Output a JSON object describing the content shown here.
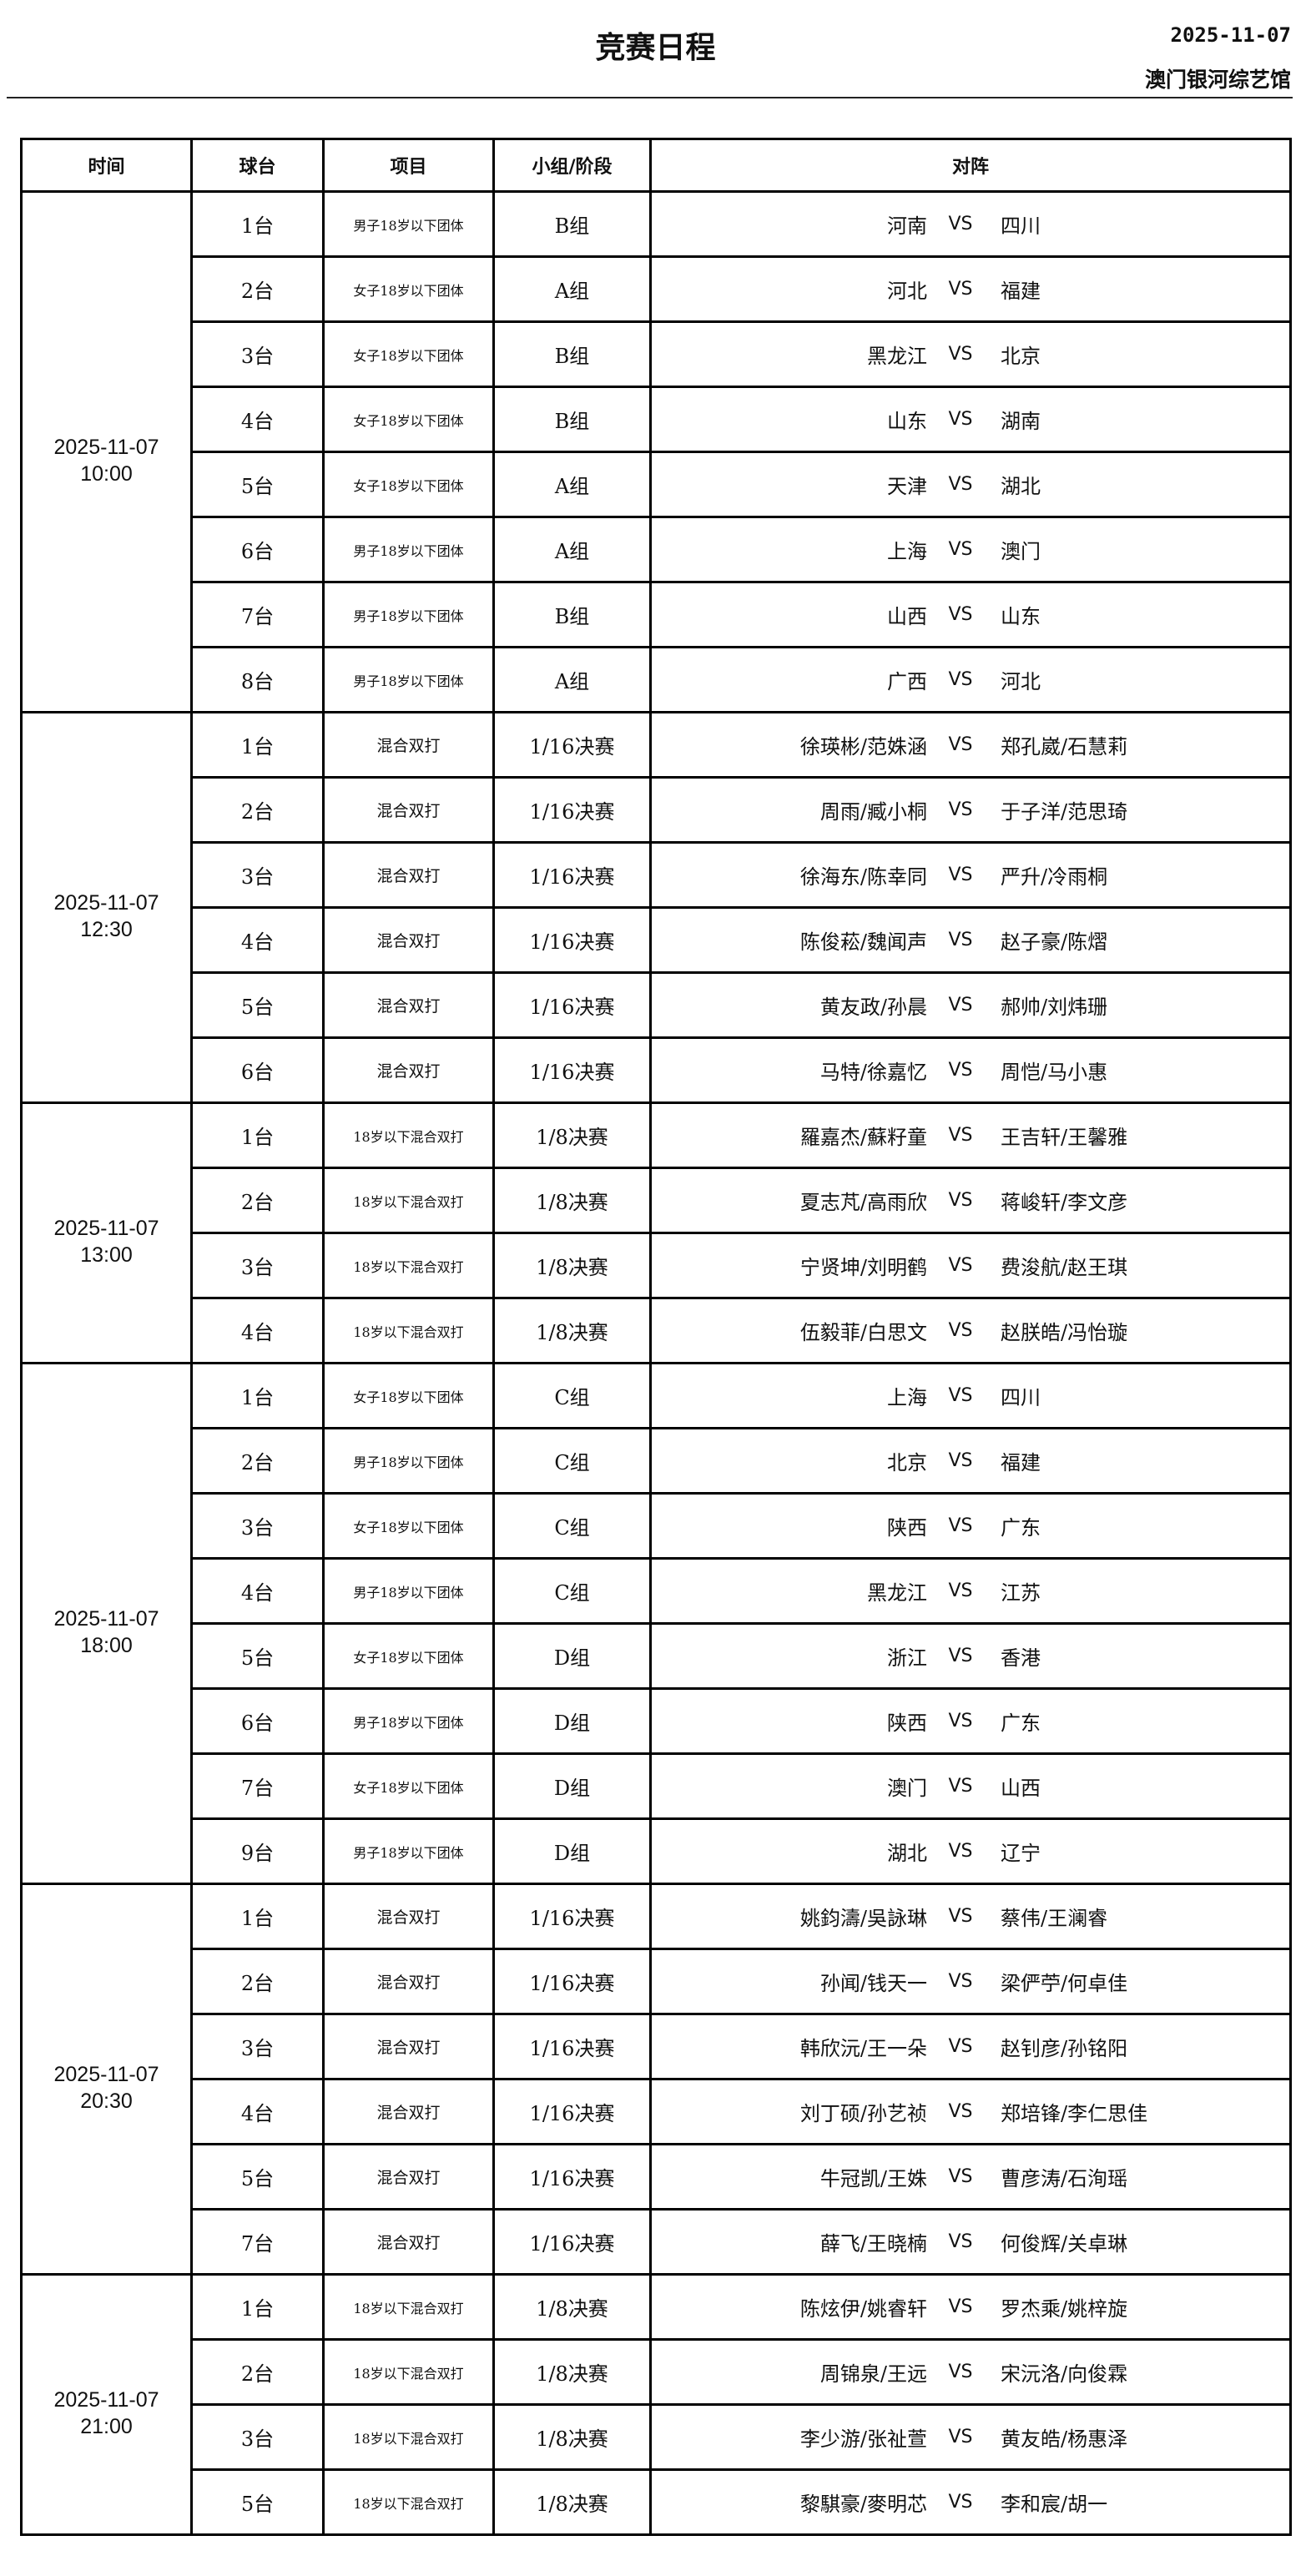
{
  "header": {
    "title": "竞赛日程",
    "date": "2025-11-07",
    "venue": "澳门银河综艺馆"
  },
  "columns": [
    "时间",
    "球台",
    "项目",
    "小组/阶段",
    "对阵"
  ],
  "vs_label": "VS",
  "sessions": [
    {
      "date": "2025-11-07",
      "time": "10:00",
      "matches": [
        {
          "table": "1台",
          "event": "男子18岁以下团体",
          "stage": "B组",
          "left": "河南",
          "right": "四川"
        },
        {
          "table": "2台",
          "event": "女子18岁以下团体",
          "stage": "A组",
          "left": "河北",
          "right": "福建"
        },
        {
          "table": "3台",
          "event": "女子18岁以下团体",
          "stage": "B组",
          "left": "黑龙江",
          "right": "北京"
        },
        {
          "table": "4台",
          "event": "女子18岁以下团体",
          "stage": "B组",
          "left": "山东",
          "right": "湖南"
        },
        {
          "table": "5台",
          "event": "女子18岁以下团体",
          "stage": "A组",
          "left": "天津",
          "right": "湖北"
        },
        {
          "table": "6台",
          "event": "男子18岁以下团体",
          "stage": "A组",
          "left": "上海",
          "right": "澳门"
        },
        {
          "table": "7台",
          "event": "男子18岁以下团体",
          "stage": "B组",
          "left": "山西",
          "right": "山东"
        },
        {
          "table": "8台",
          "event": "男子18岁以下团体",
          "stage": "A组",
          "left": "广西",
          "right": "河北"
        }
      ]
    },
    {
      "date": "2025-11-07",
      "time": "12:30",
      "matches": [
        {
          "table": "1台",
          "event": "混合双打",
          "stage": "1/16决赛",
          "left": "徐瑛彬/范姝涵",
          "right": "郑孔崴/石慧莉"
        },
        {
          "table": "2台",
          "event": "混合双打",
          "stage": "1/16决赛",
          "left": "周雨/臧小桐",
          "right": "于子洋/范思琦"
        },
        {
          "table": "3台",
          "event": "混合双打",
          "stage": "1/16决赛",
          "left": "徐海东/陈幸同",
          "right": "严升/冷雨桐"
        },
        {
          "table": "4台",
          "event": "混合双打",
          "stage": "1/16决赛",
          "left": "陈俊菘/魏闻声",
          "right": "赵子豪/陈熠"
        },
        {
          "table": "5台",
          "event": "混合双打",
          "stage": "1/16决赛",
          "left": "黄友政/孙晨",
          "right": "郝帅/刘炜珊"
        },
        {
          "table": "6台",
          "event": "混合双打",
          "stage": "1/16决赛",
          "left": "马特/徐嘉忆",
          "right": "周恺/马小惠"
        }
      ]
    },
    {
      "date": "2025-11-07",
      "time": "13:00",
      "matches": [
        {
          "table": "1台",
          "event": "18岁以下混合双打",
          "stage": "1/8决赛",
          "left": "羅嘉杰/蘇籽童",
          "right": "王吉轩/王馨雅"
        },
        {
          "table": "2台",
          "event": "18岁以下混合双打",
          "stage": "1/8决赛",
          "left": "夏志芃/高雨欣",
          "right": "蒋峻轩/李文彦"
        },
        {
          "table": "3台",
          "event": "18岁以下混合双打",
          "stage": "1/8决赛",
          "left": "宁贤坤/刘明鹤",
          "right": "费浚航/赵王琪"
        },
        {
          "table": "4台",
          "event": "18岁以下混合双打",
          "stage": "1/8决赛",
          "left": "伍毅菲/白思文",
          "right": "赵朕皓/冯怡璇"
        }
      ]
    },
    {
      "date": "2025-11-07",
      "time": "18:00",
      "matches": [
        {
          "table": "1台",
          "event": "女子18岁以下团体",
          "stage": "C组",
          "left": "上海",
          "right": "四川"
        },
        {
          "table": "2台",
          "event": "男子18岁以下团体",
          "stage": "C组",
          "left": "北京",
          "right": "福建"
        },
        {
          "table": "3台",
          "event": "女子18岁以下团体",
          "stage": "C组",
          "left": "陕西",
          "right": "广东"
        },
        {
          "table": "4台",
          "event": "男子18岁以下团体",
          "stage": "C组",
          "left": "黑龙江",
          "right": "江苏"
        },
        {
          "table": "5台",
          "event": "女子18岁以下团体",
          "stage": "D组",
          "left": "浙江",
          "right": "香港"
        },
        {
          "table": "6台",
          "event": "男子18岁以下团体",
          "stage": "D组",
          "left": "陕西",
          "right": "广东"
        },
        {
          "table": "7台",
          "event": "女子18岁以下团体",
          "stage": "D组",
          "left": "澳门",
          "right": "山西"
        },
        {
          "table": "9台",
          "event": "男子18岁以下团体",
          "stage": "D组",
          "left": "湖北",
          "right": "辽宁"
        }
      ]
    },
    {
      "date": "2025-11-07",
      "time": "20:30",
      "matches": [
        {
          "table": "1台",
          "event": "混合双打",
          "stage": "1/16决赛",
          "left": "姚鈞濤/吳詠琳",
          "right": "蔡伟/王澜睿"
        },
        {
          "table": "2台",
          "event": "混合双打",
          "stage": "1/16决赛",
          "left": "孙闻/钱天一",
          "right": "梁俨苧/何卓佳"
        },
        {
          "table": "3台",
          "event": "混合双打",
          "stage": "1/16决赛",
          "left": "韩欣沅/王一朵",
          "right": "赵钊彦/孙铭阳"
        },
        {
          "table": "4台",
          "event": "混合双打",
          "stage": "1/16决赛",
          "left": "刘丁硕/孙艺祯",
          "right": "郑培锋/李仁思佳"
        },
        {
          "table": "5台",
          "event": "混合双打",
          "stage": "1/16决赛",
          "left": "牛冠凯/王姝",
          "right": "曹彦涛/石洵瑶"
        },
        {
          "table": "7台",
          "event": "混合双打",
          "stage": "1/16决赛",
          "left": "薛飞/王晓楠",
          "right": "何俊辉/关卓琳"
        }
      ]
    },
    {
      "date": "2025-11-07",
      "time": "21:00",
      "matches": [
        {
          "table": "1台",
          "event": "18岁以下混合双打",
          "stage": "1/8决赛",
          "left": "陈炫伊/姚睿轩",
          "right": "罗杰乘/姚梓旋"
        },
        {
          "table": "2台",
          "event": "18岁以下混合双打",
          "stage": "1/8决赛",
          "left": "周锦泉/王远",
          "right": "宋沅洛/向俊霖"
        },
        {
          "table": "3台",
          "event": "18岁以下混合双打",
          "stage": "1/8决赛",
          "left": "李少游/张祉萱",
          "right": "黄友皓/杨惠泽"
        },
        {
          "table": "5台",
          "event": "18岁以下混合双打",
          "stage": "1/8决赛",
          "left": "黎騏豪/麥明芯",
          "right": "李和宸/胡一"
        }
      ]
    }
  ]
}
